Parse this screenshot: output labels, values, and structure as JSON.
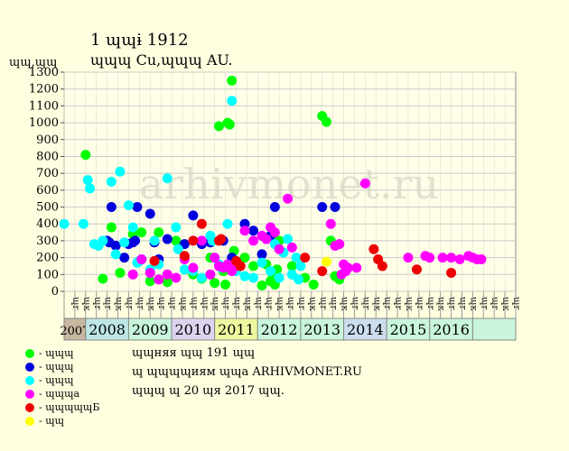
{
  "header": {
    "title": "1 ɰɰɨ 1912",
    "subtitle": "ɰɰɰ Cu,ɰɰɰ AU.",
    "y_unit": "ɰɰ,ɰɰ"
  },
  "watermark": "arhivmonet.ru",
  "legend": [
    {
      "label": "- ɰɰɰ",
      "color": "#00FF00"
    },
    {
      "label": "- ɰɰɰ",
      "color": "#0000DD"
    },
    {
      "label": "- ɰɰɰ",
      "color": "#00FFFF"
    },
    {
      "label": "- ɰɰɰa",
      "color": "#FF00FF"
    },
    {
      "label": "- ɰɰɰɰɰБ",
      "color": "#EE0000"
    },
    {
      "label": "- ɰɰ",
      "color": "#FFFF00"
    }
  ],
  "notes": [
    "ɰɰняя ɰɰ 191 ɰɰ",
    "ɰ ɰɰɰɰиям ɰɰa ARHIVMONET.RU",
    "ɰɰɰ ɰ 20 ɰя 2017 ɰɰ."
  ],
  "chart_data": {
    "type": "scatter",
    "title": "1 ɰɰɨ 1912",
    "subtitle": "ɰɰɰ Cu,ɰɰɰ AU.",
    "ylabel": "ɰɰ,ɰɰ",
    "ylim": [
      0,
      1300
    ],
    "yticks": [
      0,
      100,
      200,
      300,
      400,
      500,
      600,
      700,
      800,
      900,
      1000,
      1100,
      1200,
      1300
    ],
    "grid": true,
    "xlim": [
      2007,
      2017.5
    ],
    "x_tick_labels": [
      "ɰr",
      "ɰк",
      "ɰr",
      "ɰr",
      "ɰк",
      "ɰr",
      "ɰr",
      "ɰк",
      "ɰr",
      "ɰr",
      "ɰк",
      "ɰr",
      "ɰr",
      "ɰк",
      "ɰr",
      "ɰr",
      "ɰк",
      "ɰr",
      "ɰr",
      "ɰк",
      "ɰr",
      "ɰr",
      "ɰк",
      "ɰr",
      "ɰr",
      "ɰк",
      "ɰr",
      "ɰr",
      "ɰк",
      "ɰr",
      "ɰr",
      "ɰк",
      "ɰr",
      "ɰr",
      "ɰк",
      "ɰr",
      "ɰr",
      "ɰк",
      "ɰr",
      "ɰr",
      "ɰк",
      "ɰr"
    ],
    "years": [
      {
        "label": "2007",
        "start": 2007.0,
        "end": 2007.5,
        "color": "#C8B7A0"
      },
      {
        "label": "2008",
        "start": 2007.5,
        "end": 2008.5,
        "color": "#BEE6E6"
      },
      {
        "label": "2009",
        "start": 2008.5,
        "end": 2009.5,
        "color": "#C8F5DC"
      },
      {
        "label": "2010",
        "start": 2009.5,
        "end": 2010.5,
        "color": "#DCD4EE"
      },
      {
        "label": "2011",
        "start": 2010.5,
        "end": 2011.5,
        "color": "#EFF7A0"
      },
      {
        "label": "2012",
        "start": 2011.5,
        "end": 2012.5,
        "color": "#C8F5DC"
      },
      {
        "label": "2013",
        "start": 2012.5,
        "end": 2013.5,
        "color": "#C8F5DC"
      },
      {
        "label": "2014",
        "start": 2013.5,
        "end": 2014.5,
        "color": "#CCDDEE"
      },
      {
        "label": "2015",
        "start": 2014.5,
        "end": 2015.5,
        "color": "#C8F5DC"
      },
      {
        "label": "2016",
        "start": 2015.5,
        "end": 2016.5,
        "color": "#C8F5DC"
      },
      {
        "label": "",
        "start": 2016.5,
        "end": 2017.5,
        "color": "#C8F5DC"
      }
    ],
    "series": [
      {
        "name": "- ɰɰɰ",
        "color": "#00FF00",
        "points": [
          [
            2007.5,
            810
          ],
          [
            2007.9,
            75
          ],
          [
            2008.1,
            380
          ],
          [
            2008.3,
            110
          ],
          [
            2008.6,
            340
          ],
          [
            2008.8,
            350
          ],
          [
            2009.0,
            60
          ],
          [
            2009.2,
            350
          ],
          [
            2009.4,
            55
          ],
          [
            2009.6,
            300
          ],
          [
            2010.0,
            100
          ],
          [
            2010.2,
            75
          ],
          [
            2010.4,
            200
          ],
          [
            2010.5,
            50
          ],
          [
            2010.6,
            980
          ],
          [
            2010.7,
            120
          ],
          [
            2010.8,
            1000
          ],
          [
            2010.85,
            990
          ],
          [
            2010.9,
            1250
          ],
          [
            2010.95,
            240
          ],
          [
            2011.0,
            180
          ],
          [
            2011.2,
            200
          ],
          [
            2011.4,
            150
          ],
          [
            2011.6,
            35
          ],
          [
            2011.7,
            160
          ],
          [
            2011.8,
            60
          ],
          [
            2011.9,
            100
          ],
          [
            2011.95,
            130
          ],
          [
            2012.0,
            300
          ],
          [
            2012.3,
            150
          ],
          [
            2012.6,
            80
          ],
          [
            2012.8,
            40
          ],
          [
            2013.0,
            1040
          ],
          [
            2013.1,
            1005
          ],
          [
            2013.2,
            300
          ],
          [
            2013.3,
            90
          ],
          [
            2013.4,
            70
          ],
          [
            2011.9,
            40
          ],
          [
            2011.85,
            80
          ],
          [
            2010.75,
            40
          ]
        ]
      },
      {
        "name": "- ɰɰɰ",
        "color": "#0000DD",
        "points": [
          [
            2008.0,
            300
          ],
          [
            2008.05,
            290
          ],
          [
            2008.1,
            500
          ],
          [
            2008.2,
            270
          ],
          [
            2008.4,
            200
          ],
          [
            2008.5,
            280
          ],
          [
            2008.6,
            290
          ],
          [
            2008.7,
            500
          ],
          [
            2008.8,
            190
          ],
          [
            2009.0,
            460
          ],
          [
            2009.1,
            290
          ],
          [
            2009.2,
            190
          ],
          [
            2009.4,
            310
          ],
          [
            2009.8,
            280
          ],
          [
            2010.0,
            450
          ],
          [
            2010.2,
            280
          ],
          [
            2010.4,
            290
          ],
          [
            2010.7,
            300
          ],
          [
            2010.9,
            200
          ],
          [
            2011.2,
            400
          ],
          [
            2011.4,
            360
          ],
          [
            2011.6,
            220
          ],
          [
            2011.8,
            330
          ],
          [
            2011.9,
            500
          ],
          [
            2013.0,
            500
          ],
          [
            2013.3,
            500
          ],
          [
            2008.65,
            300
          ]
        ]
      },
      {
        "name": "- ɰɰɰ",
        "color": "#00FFFF",
        "points": [
          [
            2007.0,
            400
          ],
          [
            2007.45,
            400
          ],
          [
            2007.55,
            660
          ],
          [
            2007.6,
            610
          ],
          [
            2007.7,
            280
          ],
          [
            2007.8,
            270
          ],
          [
            2007.9,
            300
          ],
          [
            2008.1,
            650
          ],
          [
            2008.2,
            220
          ],
          [
            2008.3,
            710
          ],
          [
            2008.4,
            290
          ],
          [
            2008.5,
            510
          ],
          [
            2008.6,
            380
          ],
          [
            2008.7,
            170
          ],
          [
            2008.8,
            190
          ],
          [
            2009.0,
            130
          ],
          [
            2009.1,
            300
          ],
          [
            2009.2,
            160
          ],
          [
            2009.4,
            670
          ],
          [
            2009.6,
            380
          ],
          [
            2009.8,
            130
          ],
          [
            2010.0,
            120
          ],
          [
            2010.2,
            80
          ],
          [
            2010.4,
            330
          ],
          [
            2010.6,
            160
          ],
          [
            2010.8,
            400
          ],
          [
            2010.9,
            1130
          ],
          [
            2011.0,
            120
          ],
          [
            2011.2,
            90
          ],
          [
            2011.4,
            80
          ],
          [
            2011.6,
            170
          ],
          [
            2011.8,
            120
          ],
          [
            2011.9,
            280
          ],
          [
            2012.0,
            80
          ],
          [
            2012.1,
            230
          ],
          [
            2012.2,
            310
          ],
          [
            2012.3,
            100
          ],
          [
            2012.4,
            200
          ],
          [
            2012.45,
            70
          ],
          [
            2012.5,
            150
          ],
          [
            2008.75,
            180
          ],
          [
            2009.65,
            250
          ],
          [
            2010.45,
            300
          ],
          [
            2010.65,
            140
          ]
        ]
      },
      {
        "name": "- ɰɰɰa",
        "color": "#FF00FF",
        "points": [
          [
            2008.6,
            100
          ],
          [
            2008.8,
            190
          ],
          [
            2009.0,
            110
          ],
          [
            2009.2,
            70
          ],
          [
            2009.4,
            100
          ],
          [
            2009.6,
            80
          ],
          [
            2009.8,
            190
          ],
          [
            2010.0,
            140
          ],
          [
            2010.2,
            300
          ],
          [
            2010.4,
            100
          ],
          [
            2010.5,
            200
          ],
          [
            2010.6,
            150
          ],
          [
            2010.7,
            140
          ],
          [
            2010.8,
            160
          ],
          [
            2010.9,
            120
          ],
          [
            2011.0,
            150
          ],
          [
            2011.2,
            360
          ],
          [
            2011.4,
            300
          ],
          [
            2011.6,
            330
          ],
          [
            2011.7,
            310
          ],
          [
            2011.8,
            380
          ],
          [
            2011.9,
            350
          ],
          [
            2012.0,
            250
          ],
          [
            2012.2,
            550
          ],
          [
            2012.3,
            260
          ],
          [
            2013.2,
            400
          ],
          [
            2013.3,
            270
          ],
          [
            2013.4,
            280
          ],
          [
            2013.5,
            160
          ],
          [
            2013.6,
            140
          ],
          [
            2013.8,
            140
          ],
          [
            2014.0,
            640
          ],
          [
            2015.0,
            200
          ],
          [
            2015.4,
            210
          ],
          [
            2015.5,
            200
          ],
          [
            2015.8,
            200
          ],
          [
            2016.0,
            200
          ],
          [
            2016.2,
            190
          ],
          [
            2016.4,
            210
          ],
          [
            2016.5,
            200
          ],
          [
            2016.6,
            190
          ],
          [
            2016.7,
            190
          ],
          [
            2013.45,
            100
          ],
          [
            2013.55,
            120
          ]
        ]
      },
      {
        "name": "- ɰɰɰɰɰБ",
        "color": "#EE0000",
        "points": [
          [
            2009.1,
            180
          ],
          [
            2009.8,
            210
          ],
          [
            2010.0,
            300
          ],
          [
            2010.2,
            400
          ],
          [
            2010.6,
            300
          ],
          [
            2010.65,
            310
          ],
          [
            2011.0,
            180
          ],
          [
            2011.1,
            150
          ],
          [
            2012.6,
            200
          ],
          [
            2013.0,
            120
          ],
          [
            2014.2,
            250
          ],
          [
            2014.3,
            190
          ],
          [
            2014.4,
            150
          ],
          [
            2015.2,
            130
          ],
          [
            2016.0,
            110
          ]
        ]
      },
      {
        "name": "- ɰɰ",
        "color": "#FFFF00",
        "points": [
          [
            2013.1,
            175
          ]
        ]
      }
    ]
  }
}
